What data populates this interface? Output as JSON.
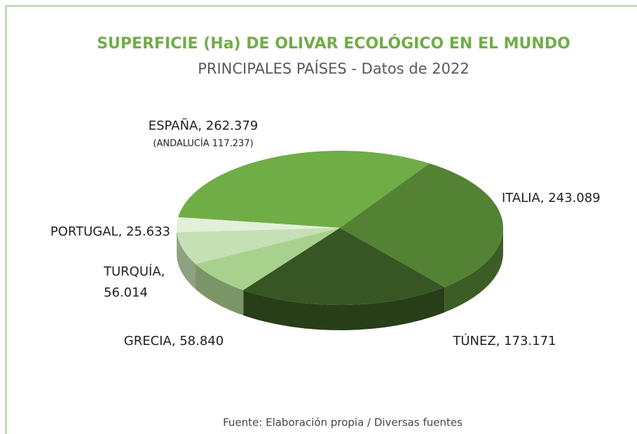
{
  "chart_data": {
    "type": "pie",
    "title": "SUPERFICIE (Ha) DE OLIVAR ECOLÓGICO EN EL MUNDO",
    "subtitle": "PRINCIPALES PAÍSES - Datos de 2022",
    "categories": [
      "ESPAÑA",
      "ITALIA",
      "TÚNEZ",
      "GRECIA",
      "TURQUÍA",
      "PORTUGAL"
    ],
    "values": [
      262379,
      243089,
      173171,
      58840,
      56014,
      25633
    ],
    "value_labels": [
      "ESPAÑA, 262.379",
      "ITALIA, 243.089",
      "TÚNEZ, 173.171",
      "GRECIA, 58.840",
      "TURQUÍA,\n56.014",
      "PORTUGAL, 25.633"
    ],
    "colors": [
      "#70ad47",
      "#548235",
      "#375623",
      "#a9d18e",
      "#c5e0b4",
      "#e2f0d9"
    ],
    "annotation": "(ANDALUCÍA 117.237)",
    "source": "Fuente: Elaboración propia / Diversas fuentes"
  }
}
